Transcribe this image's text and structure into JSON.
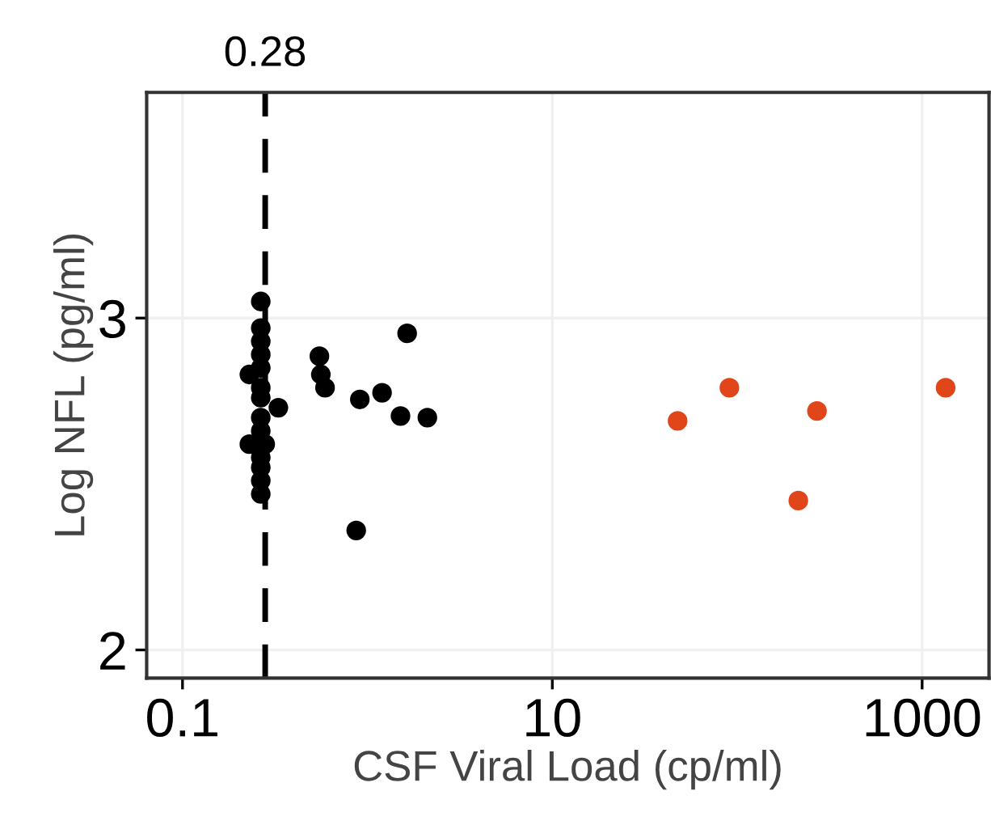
{
  "chart_data": {
    "type": "scatter",
    "xlabel": "CSF Viral Load (cp/ml)",
    "ylabel": "Log NFL (pg/ml)",
    "log": "x",
    "grid": true,
    "marker": "circle",
    "xlim": [
      0.064,
      2300
    ],
    "xticks": [
      0.1,
      10,
      1000
    ],
    "ylim": [
      1.915,
      3.68
    ],
    "yticks": [
      2,
      3
    ],
    "ref_lines": [
      {
        "axis": "x",
        "value": 0.28,
        "label": "0.28",
        "color": "#000000",
        "line_style": "dashed"
      }
    ],
    "series": [
      {
        "color": "#000000",
        "x": [
          0.265,
          0.265,
          0.265,
          0.265,
          0.265,
          0.23,
          0.265,
          0.265,
          0.33,
          0.265,
          0.265,
          0.23,
          0.28,
          0.265,
          0.265,
          0.265,
          0.265,
          0.55,
          0.56,
          0.59,
          0.91,
          1.2,
          1.64,
          1.51,
          2.11,
          0.87
        ],
        "values": [
          3.05,
          2.97,
          2.93,
          2.89,
          2.85,
          2.83,
          2.79,
          2.76,
          2.73,
          2.7,
          2.66,
          2.62,
          2.62,
          2.58,
          2.55,
          2.51,
          2.47,
          2.885,
          2.83,
          2.79,
          2.755,
          2.775,
          2.954,
          2.705,
          2.7,
          2.36
        ]
      },
      {
        "color": "#e0461a",
        "x": [
          47.6,
          90.7,
          270,
          214,
          1340
        ],
        "values": [
          2.69,
          2.79,
          2.72,
          2.45,
          2.79
        ]
      }
    ]
  }
}
